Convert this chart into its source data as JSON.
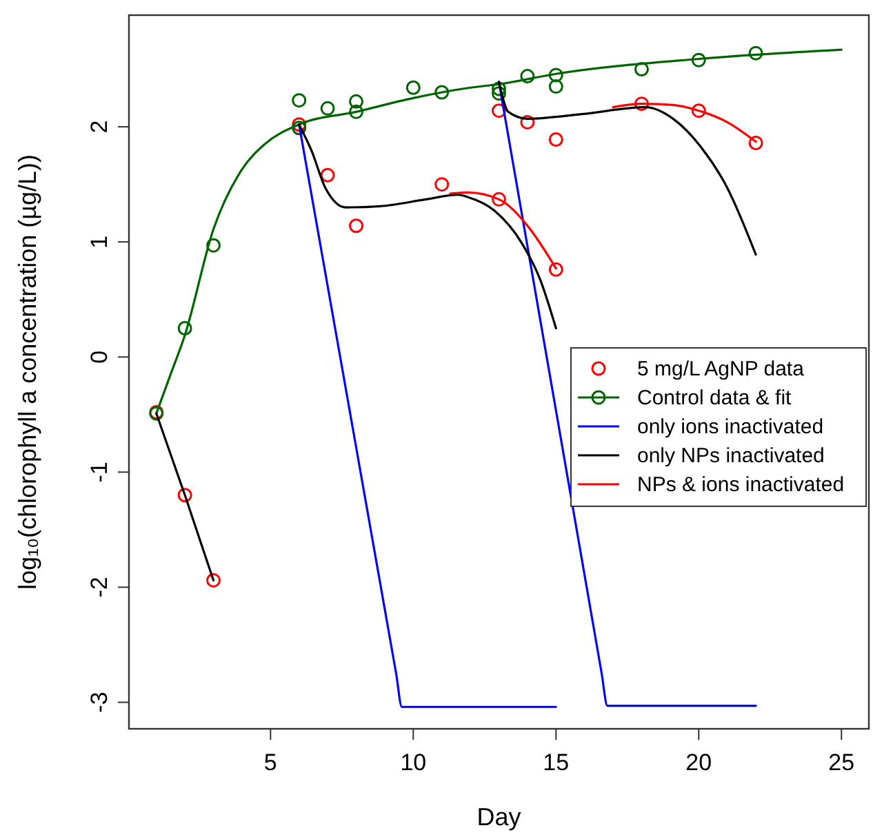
{
  "chart_data": {
    "type": "line",
    "xlabel": "Day",
    "ylabel": "log₁₀(chlorophyll a concentration (µg/L))",
    "xlim": [
      0.04,
      25.96
    ],
    "xticks": [
      5,
      10,
      15,
      20,
      25
    ],
    "ylim": [
      -3.23,
      2.97
    ],
    "yticks": [
      -3,
      -2,
      -1,
      0,
      1,
      2
    ],
    "grid": false,
    "legend": "right",
    "series": [
      {
        "name": "5 mg/L AgNP data",
        "type": "scatter",
        "marker": "circle",
        "color": "#ff0000",
        "x": [
          1,
          2,
          3,
          6,
          7,
          8,
          11,
          13,
          15,
          13,
          14,
          15,
          18,
          20,
          22
        ],
        "values": [
          -0.48,
          -1.2,
          -1.94,
          2.02,
          1.58,
          1.14,
          1.5,
          1.37,
          0.76,
          2.14,
          2.04,
          1.89,
          2.2,
          2.14,
          1.86
        ]
      },
      {
        "name": "Control data & fit",
        "type": "scatter",
        "marker": "circle",
        "color": "#006400",
        "x": [
          1,
          2,
          3,
          6,
          6,
          7,
          8,
          8,
          10,
          11,
          13,
          13,
          14,
          15,
          15,
          18,
          20,
          22
        ],
        "values": [
          -0.49,
          0.25,
          0.97,
          2.23,
          1.99,
          2.16,
          2.22,
          2.13,
          2.34,
          2.3,
          2.33,
          2.29,
          2.44,
          2.45,
          2.35,
          2.5,
          2.58,
          2.64
        ]
      },
      {
        "color": "#006400",
        "x": [
          1,
          1.5,
          2,
          3,
          4,
          4.8,
          6,
          8,
          10,
          12,
          13,
          15,
          20,
          25
        ],
        "values": [
          -0.49,
          -0.15,
          0.19,
          1.11,
          1.63,
          1.85,
          2.02,
          2.13,
          2.25,
          2.34,
          2.37,
          2.46,
          2.59,
          2.67
        ]
      },
      {
        "name": "only ions inactivated",
        "color": "#0000ff",
        "x": [
          6,
          9.4,
          9.6,
          15,
          14,
          13,
          16.6,
          16.8,
          22
        ],
        "values": [
          2.02,
          -2.75,
          -3.04,
          -3.04,
          null,
          2.39,
          -2.75,
          -3.03,
          -3.03
        ]
      },
      {
        "name": "only NPs inactivated",
        "color": "#000000",
        "x": [
          1,
          2,
          3,
          4,
          6,
          6.44,
          6.92,
          7.64,
          8.84,
          10.45,
          11.57,
          11.9,
          12.85,
          13.8,
          14.45,
          15,
          14,
          13,
          13.33,
          14,
          15.9,
          18.14,
          19.1,
          20.06,
          21,
          22
        ],
        "values": [
          -0.49,
          -1.2,
          -1.94,
          null,
          2.02,
          1.79,
          1.47,
          1.3,
          1.31,
          1.37,
          1.41,
          1.39,
          1.27,
          0.99,
          0.67,
          0.25,
          null,
          2.39,
          2.13,
          2.07,
          2.11,
          2.17,
          2.07,
          1.83,
          1.47,
          0.89
        ]
      },
      {
        "name": "NPs & ions inactivated",
        "color": "#ff0000",
        "x": [
          11.3,
          11.9,
          13,
          13.97,
          15,
          16,
          17,
          18,
          19.1,
          20,
          21,
          22
        ],
        "values": [
          1.42,
          1.43,
          1.37,
          1.15,
          0.77,
          null,
          2.17,
          2.2,
          2.19,
          2.14,
          2.04,
          1.87
        ]
      }
    ]
  }
}
